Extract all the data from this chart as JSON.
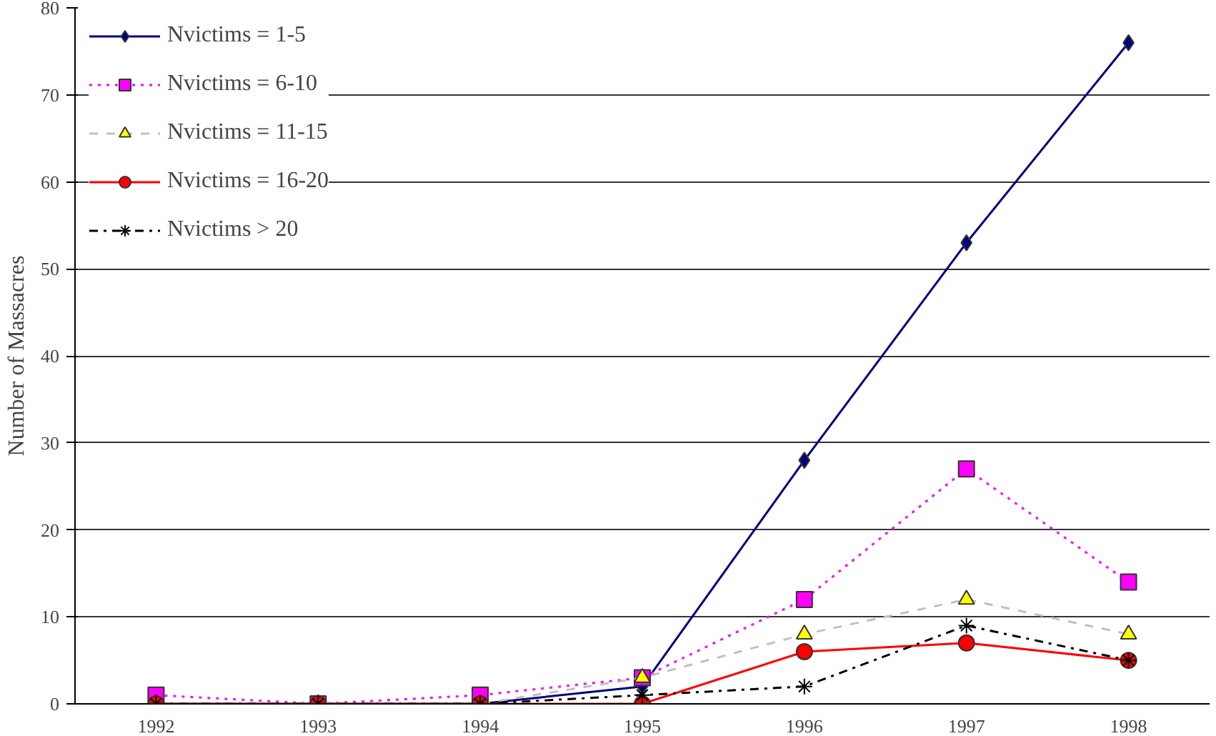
{
  "chart_data": {
    "type": "line",
    "ylabel": "Number of Massacres",
    "categories": [
      "1992",
      "1993",
      "1994",
      "1995",
      "1996",
      "1997",
      "1998"
    ],
    "ylim": [
      0,
      80
    ],
    "yticks": [
      0,
      10,
      20,
      30,
      40,
      50,
      60,
      70,
      80
    ],
    "grid": "y",
    "legend": "top left",
    "series": [
      {
        "name": "Nvictims = 1-5",
        "color": "#000080",
        "marker": "diamond",
        "line_style": "solid",
        "values": [
          0,
          0,
          0,
          2,
          28,
          53,
          76
        ]
      },
      {
        "name": "Nvictims = 6-10",
        "color": "#ff00ff",
        "marker": "square",
        "line_style": "dotted",
        "values": [
          1,
          0,
          1,
          3,
          12,
          27,
          14
        ]
      },
      {
        "name": "Nvictims = 11-15",
        "color": "#ffff00",
        "marker": "triangle",
        "line_style": "dashed",
        "values": [
          0,
          0,
          0,
          3,
          8,
          12,
          8
        ]
      },
      {
        "name": "Nvictims = 16-20",
        "color": "#ff0000",
        "marker": "circle",
        "line_style": "solid",
        "values": [
          0,
          0,
          0,
          0,
          6,
          7,
          5
        ]
      },
      {
        "name": "Nvictims > 20",
        "color": "#000000",
        "marker": "cross",
        "line_style": "dashdot",
        "values": [
          0,
          0,
          0,
          1,
          2,
          9,
          5
        ]
      }
    ]
  }
}
